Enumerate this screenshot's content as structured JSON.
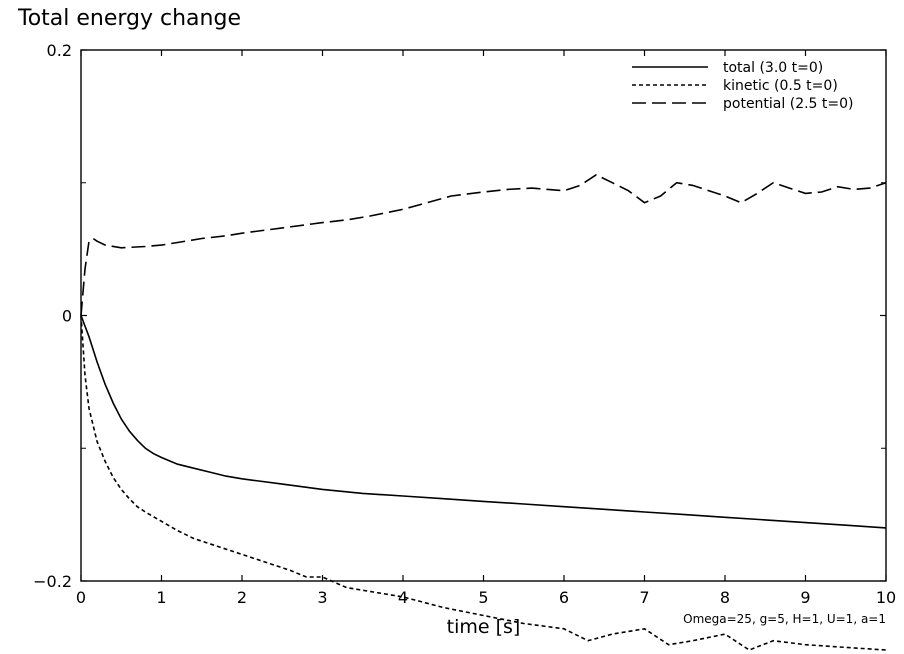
{
  "title": "Total energy change",
  "parameters": "Omega=25, g=5, H=1, U=1, a=1",
  "chart_data": {
    "type": "line",
    "title": "Total energy change",
    "xlabel": "time [s]",
    "ylabel": "",
    "xlim": [
      0,
      10
    ],
    "ylim": [
      -0.2,
      0.2
    ],
    "xticks": [
      0,
      1,
      2,
      3,
      4,
      5,
      6,
      7,
      8,
      9,
      10
    ],
    "yticks": [
      -0.2,
      0,
      0.2
    ],
    "ytick_labels": [
      "−0.2",
      "0",
      "0.2"
    ],
    "legend_position": "top-right",
    "series": [
      {
        "name": "total (3.0 t=0)",
        "style": "solid",
        "x": [
          0,
          0.05,
          0.1,
          0.2,
          0.3,
          0.4,
          0.5,
          0.6,
          0.7,
          0.8,
          0.9,
          1.0,
          1.2,
          1.4,
          1.6,
          1.8,
          2.0,
          2.5,
          3.0,
          3.5,
          4.0,
          4.5,
          5.0,
          5.5,
          6.0,
          6.5,
          7.0,
          7.5,
          8.0,
          8.5,
          9.0,
          9.5,
          10.0
        ],
        "y": [
          0,
          -0.008,
          -0.016,
          -0.035,
          -0.052,
          -0.066,
          -0.078,
          -0.087,
          -0.094,
          -0.1,
          -0.104,
          -0.107,
          -0.112,
          -0.115,
          -0.118,
          -0.121,
          -0.123,
          -0.127,
          -0.131,
          -0.134,
          -0.136,
          -0.138,
          -0.14,
          -0.142,
          -0.144,
          -0.146,
          -0.148,
          -0.15,
          -0.152,
          -0.154,
          -0.156,
          -0.158,
          -0.16
        ]
      },
      {
        "name": "kinetic (0.5 t=0)",
        "style": "dashed",
        "x": [
          0,
          0.05,
          0.1,
          0.2,
          0.3,
          0.4,
          0.5,
          0.6,
          0.7,
          0.8,
          1.0,
          1.2,
          1.4,
          1.6,
          1.8,
          2.0,
          2.3,
          2.6,
          2.8,
          3.0,
          3.3,
          3.6,
          4.0,
          4.5,
          5.0,
          5.5,
          6.0,
          6.3,
          6.6,
          7.0,
          7.3,
          7.6,
          8.0,
          8.3,
          8.6,
          9.0,
          9.5,
          10.0
        ],
        "y": [
          0,
          -0.045,
          -0.07,
          -0.095,
          -0.11,
          -0.122,
          -0.131,
          -0.138,
          -0.144,
          -0.148,
          -0.155,
          -0.162,
          -0.168,
          -0.172,
          -0.176,
          -0.18,
          -0.186,
          -0.192,
          -0.197,
          -0.197,
          -0.205,
          -0.208,
          -0.212,
          -0.22,
          -0.226,
          -0.232,
          -0.236,
          -0.245,
          -0.24,
          -0.236,
          -0.248,
          -0.245,
          -0.24,
          -0.252,
          -0.245,
          -0.248,
          -0.25,
          -0.252
        ]
      },
      {
        "name": "potential (2.5 t=0)",
        "style": "long-dashed",
        "x": [
          0,
          0.05,
          0.1,
          0.15,
          0.2,
          0.3,
          0.5,
          0.8,
          1.0,
          1.2,
          1.5,
          1.8,
          2.0,
          2.5,
          3.0,
          3.3,
          3.6,
          4.0,
          4.3,
          4.6,
          5.0,
          5.3,
          5.6,
          6.0,
          6.2,
          6.4,
          6.6,
          6.8,
          7.0,
          7.2,
          7.4,
          7.6,
          7.8,
          8.0,
          8.2,
          8.4,
          8.6,
          8.8,
          9.0,
          9.2,
          9.4,
          9.6,
          9.8,
          10.0
        ],
        "y": [
          0,
          0.035,
          0.056,
          0.058,
          0.056,
          0.053,
          0.051,
          0.052,
          0.053,
          0.055,
          0.058,
          0.06,
          0.062,
          0.066,
          0.07,
          0.072,
          0.075,
          0.08,
          0.085,
          0.09,
          0.093,
          0.095,
          0.096,
          0.094,
          0.098,
          0.106,
          0.1,
          0.094,
          0.085,
          0.09,
          0.1,
          0.098,
          0.094,
          0.09,
          0.085,
          0.092,
          0.1,
          0.096,
          0.092,
          0.093,
          0.097,
          0.095,
          0.096,
          0.1
        ]
      }
    ]
  }
}
